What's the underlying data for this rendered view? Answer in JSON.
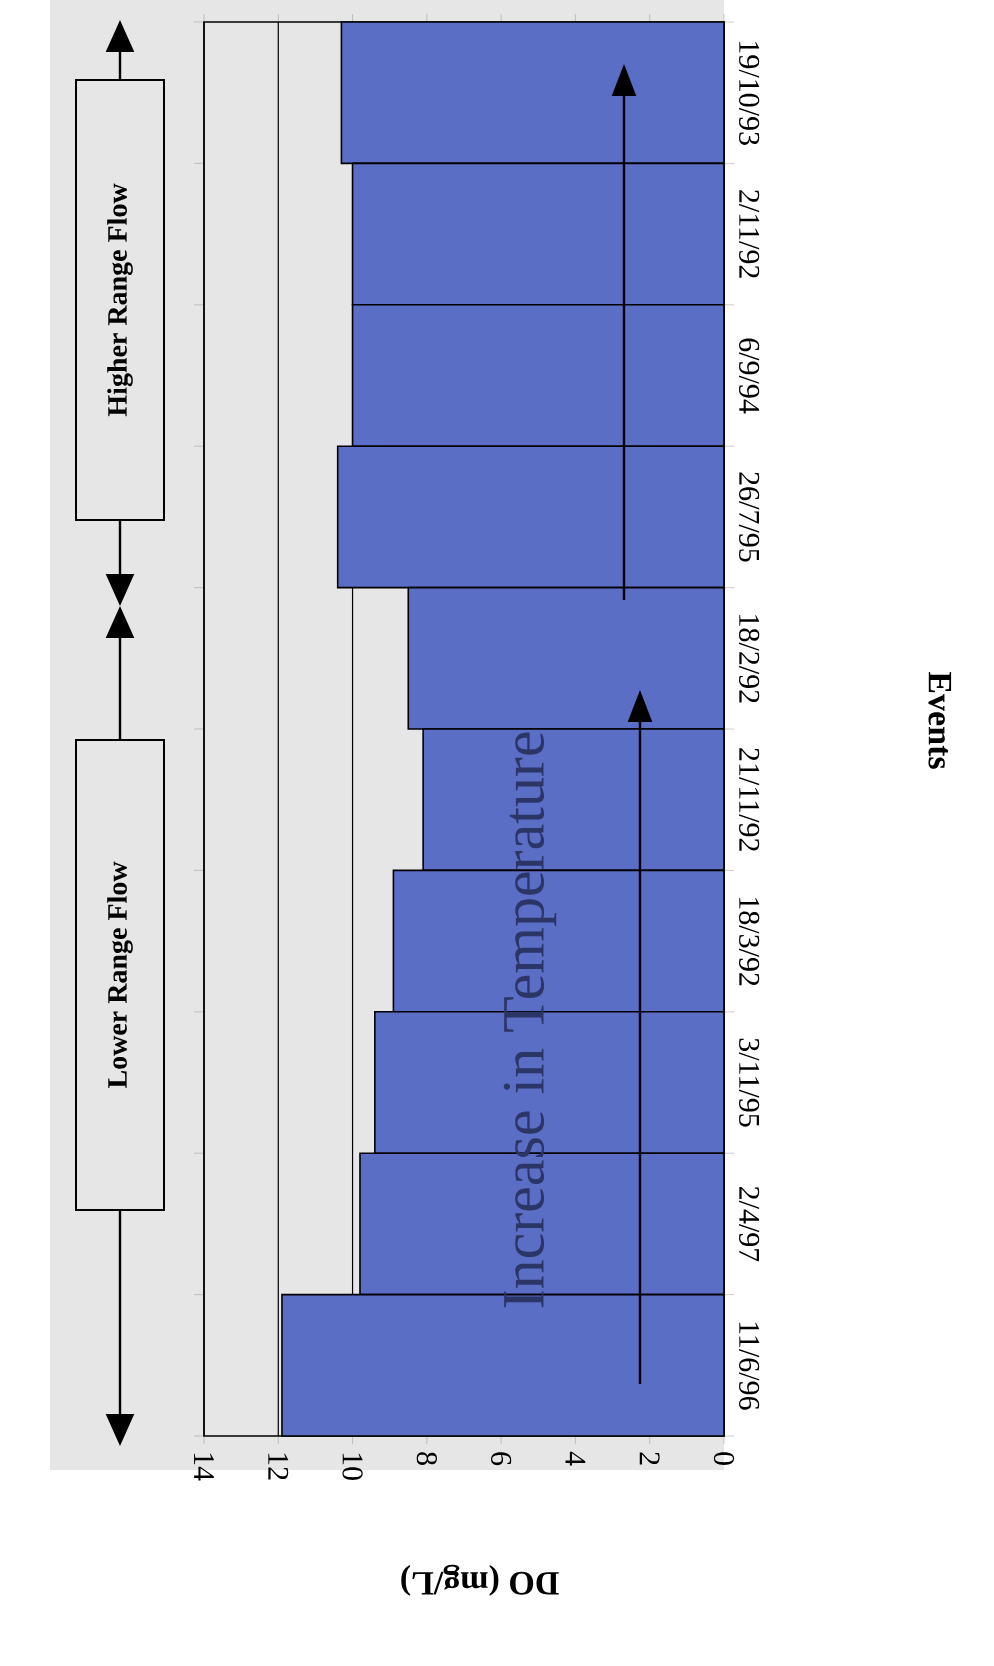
{
  "chart_data": {
    "type": "bar",
    "orientation": "horizontal",
    "xlabel": "DO (mg/L)",
    "ylabel": "Events",
    "categories": [
      "19/10/93",
      "2/11/92",
      "6/9/94",
      "26/7/95",
      "18/2/92",
      "21/11/92",
      "18/3/92",
      "3/11/95",
      "2/4/97",
      "11/6/96"
    ],
    "values": [
      10.3,
      10.0,
      10.0,
      10.4,
      8.5,
      8.1,
      8.9,
      9.4,
      9.8,
      11.9
    ],
    "color": "#5a6ec6",
    "xlim": [
      14,
      0
    ],
    "xticks": [
      14,
      12,
      10,
      8,
      6,
      4,
      2,
      0
    ],
    "grid": "x",
    "annotations": [
      "Increase in Temperature",
      "Lower Range Flow",
      "Higher Range Flow"
    ]
  }
}
